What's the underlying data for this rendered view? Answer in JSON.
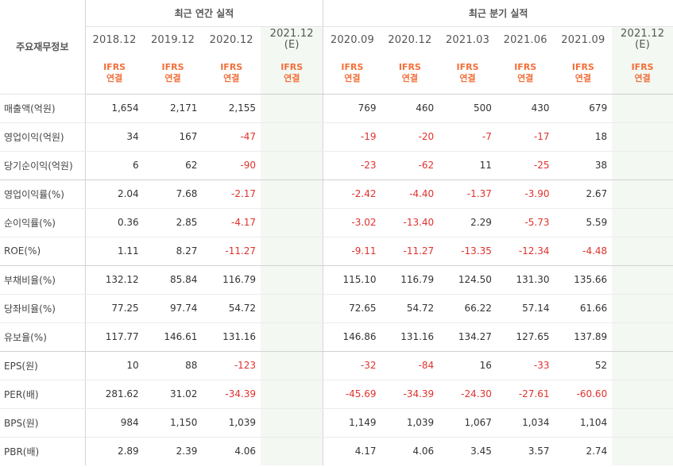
{
  "row_header_title": "주요재무정보",
  "annual_header": "최근 연간 실적",
  "quarter_header": "최근 분기 실적",
  "annual_periods": [
    "2018.12",
    "2019.12",
    "2020.12"
  ],
  "annual_estimate": {
    "line1": "2021.12",
    "line2": "(E)"
  },
  "quarter_periods": [
    "2020.09",
    "2020.12",
    "2021.03",
    "2021.06",
    "2021.09"
  ],
  "quarter_estimate": {
    "line1": "2021.12",
    "line2": "(E)"
  },
  "accounting": {
    "line1": "IFRS",
    "line2": "연결"
  },
  "colors": {
    "negative": "#e0322d",
    "ifrs": "#f26f3a",
    "estimate": "#3c9f55",
    "estimate_bg": "#f3f8f2"
  },
  "rows": [
    {
      "label": "매출액(억원)",
      "annual": [
        "1,654",
        "2,171",
        "2,155"
      ],
      "quarter": [
        "769",
        "460",
        "500",
        "430",
        "679"
      ]
    },
    {
      "label": "영업이익(억원)",
      "annual": [
        "34",
        "167",
        "-47"
      ],
      "quarter": [
        "-19",
        "-20",
        "-7",
        "-17",
        "18"
      ]
    },
    {
      "label": "당기순이익(억원)",
      "annual": [
        "6",
        "62",
        "-90"
      ],
      "quarter": [
        "-23",
        "-62",
        "11",
        "-25",
        "38"
      ]
    },
    {
      "label": "영업이익률(%)",
      "annual": [
        "2.04",
        "7.68",
        "-2.17"
      ],
      "quarter": [
        "-2.42",
        "-4.40",
        "-1.37",
        "-3.90",
        "2.67"
      ]
    },
    {
      "label": "순이익률(%)",
      "annual": [
        "0.36",
        "2.85",
        "-4.17"
      ],
      "quarter": [
        "-3.02",
        "-13.40",
        "2.29",
        "-5.73",
        "5.59"
      ]
    },
    {
      "label": "ROE(%)",
      "annual": [
        "1.11",
        "8.27",
        "-11.27"
      ],
      "quarter": [
        "-9.11",
        "-11.27",
        "-13.35",
        "-12.34",
        "-4.48"
      ]
    },
    {
      "label": "부채비율(%)",
      "annual": [
        "132.12",
        "85.84",
        "116.79"
      ],
      "quarter": [
        "115.10",
        "116.79",
        "124.50",
        "131.30",
        "135.66"
      ]
    },
    {
      "label": "당좌비율(%)",
      "annual": [
        "77.25",
        "97.74",
        "54.72"
      ],
      "quarter": [
        "72.65",
        "54.72",
        "66.22",
        "57.14",
        "61.66"
      ]
    },
    {
      "label": "유보율(%)",
      "annual": [
        "117.77",
        "146.61",
        "131.16"
      ],
      "quarter": [
        "146.86",
        "131.16",
        "134.27",
        "127.65",
        "137.89"
      ]
    },
    {
      "label": "EPS(원)",
      "annual": [
        "10",
        "88",
        "-123"
      ],
      "quarter": [
        "-32",
        "-84",
        "16",
        "-33",
        "52"
      ]
    },
    {
      "label": "PER(배)",
      "annual": [
        "281.62",
        "31.02",
        "-34.39"
      ],
      "quarter": [
        "-45.69",
        "-34.39",
        "-24.30",
        "-27.61",
        "-60.60"
      ]
    },
    {
      "label": "BPS(원)",
      "annual": [
        "984",
        "1,150",
        "1,039"
      ],
      "quarter": [
        "1,149",
        "1,039",
        "1,067",
        "1,034",
        "1,104"
      ]
    },
    {
      "label": "PBR(배)",
      "annual": [
        "2.89",
        "2.39",
        "4.06"
      ],
      "quarter": [
        "4.17",
        "4.06",
        "3.45",
        "3.57",
        "2.74"
      ]
    }
  ]
}
